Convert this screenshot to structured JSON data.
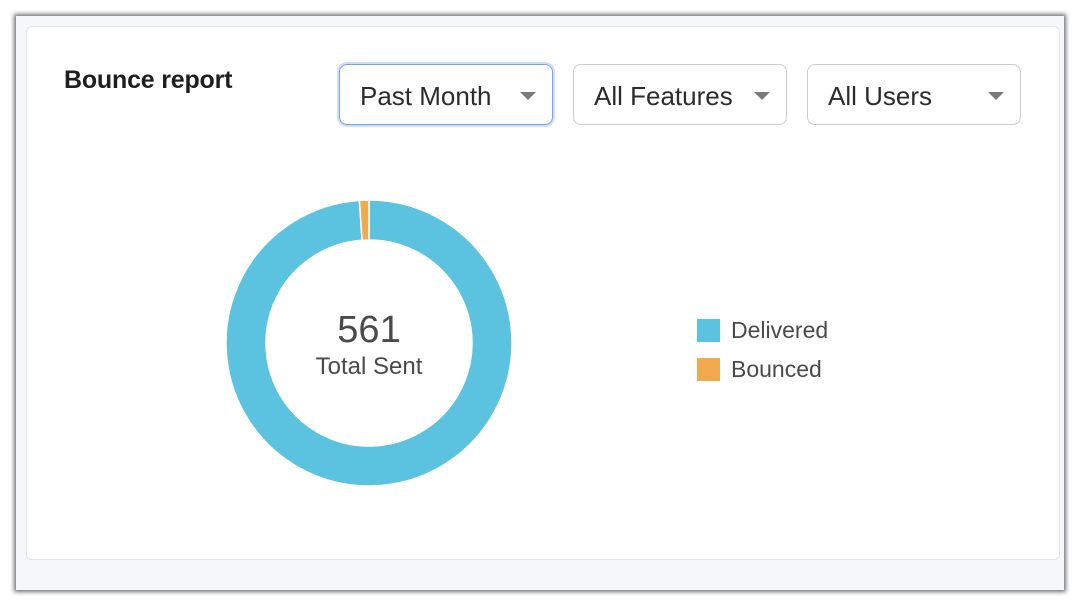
{
  "report": {
    "title": "Bounce report"
  },
  "filters": {
    "period": "Past Month",
    "feature": "All Features",
    "users": "All Users"
  },
  "colors": {
    "delivered": "#5bc3e0",
    "bounced": "#f0a94e"
  },
  "chart_data": {
    "type": "pie",
    "donut": true,
    "center_value": "561",
    "center_label": "Total Sent",
    "slices": [
      {
        "name": "Delivered",
        "value": 555
      },
      {
        "name": "Bounced",
        "value": 6
      }
    ],
    "legend_position": "right"
  }
}
